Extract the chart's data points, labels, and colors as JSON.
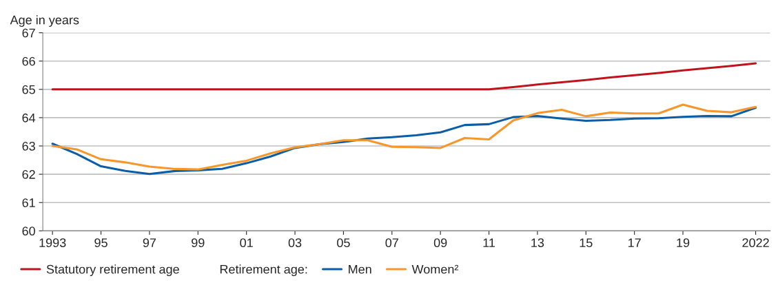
{
  "chart_data": {
    "type": "line",
    "ylabel": "Age in years",
    "legend_title": "Retirement age:",
    "x": [
      1993,
      1994,
      1995,
      1996,
      1997,
      1998,
      1999,
      2000,
      2001,
      2002,
      2003,
      2004,
      2005,
      2006,
      2007,
      2008,
      2009,
      2010,
      2011,
      2012,
      2013,
      2014,
      2015,
      2016,
      2017,
      2018,
      2019,
      2020,
      2021,
      2022
    ],
    "series": [
      {
        "name": "Statutory retirement age",
        "color": "#c0141c",
        "x": [
          1993,
          2011,
          2012,
          2013,
          2014,
          2015,
          2016,
          2017,
          2018,
          2019,
          2020,
          2021,
          2022
        ],
        "values": [
          65,
          65,
          65.08,
          65.17,
          65.25,
          65.33,
          65.42,
          65.5,
          65.58,
          65.67,
          65.75,
          65.83,
          65.92
        ]
      },
      {
        "name": "Men",
        "color": "#0a5ea8",
        "values": [
          63.08,
          62.72,
          62.28,
          62.12,
          62.01,
          62.11,
          62.14,
          62.19,
          62.39,
          62.63,
          62.93,
          63.06,
          63.14,
          63.26,
          63.31,
          63.38,
          63.48,
          63.74,
          63.77,
          64.02,
          64.06,
          63.97,
          63.89,
          63.92,
          63.97,
          63.98,
          64.03,
          64.06,
          64.05,
          64.35
        ]
      },
      {
        "name": "Women²",
        "color": "#f7962b",
        "values": [
          63.0,
          62.88,
          62.53,
          62.42,
          62.27,
          62.19,
          62.17,
          62.33,
          62.48,
          62.74,
          62.95,
          63.06,
          63.2,
          63.2,
          62.97,
          62.96,
          62.93,
          63.28,
          63.23,
          63.9,
          64.16,
          64.28,
          64.05,
          64.18,
          64.15,
          64.15,
          64.46,
          64.24,
          64.19,
          64.38
        ]
      }
    ],
    "xlim": [
      1992.6,
      2022.6
    ],
    "xticks": [
      {
        "value": 1993,
        "label": "1993"
      },
      {
        "value": 1995,
        "label": "95"
      },
      {
        "value": 1997,
        "label": "97"
      },
      {
        "value": 1999,
        "label": "99"
      },
      {
        "value": 2001,
        "label": "01"
      },
      {
        "value": 2003,
        "label": "03"
      },
      {
        "value": 2005,
        "label": "05"
      },
      {
        "value": 2007,
        "label": "07"
      },
      {
        "value": 2009,
        "label": "09"
      },
      {
        "value": 2011,
        "label": "11"
      },
      {
        "value": 2013,
        "label": "13"
      },
      {
        "value": 2015,
        "label": "15"
      },
      {
        "value": 2017,
        "label": "17"
      },
      {
        "value": 2019,
        "label": "19"
      },
      {
        "value": 2022,
        "label": "2022"
      }
    ],
    "ylim": [
      60,
      67
    ],
    "yticks": [
      60,
      61,
      62,
      63,
      64,
      65,
      66,
      67
    ],
    "grid": "y",
    "legend": "bottom",
    "line_style": "solid",
    "marker": "none"
  }
}
